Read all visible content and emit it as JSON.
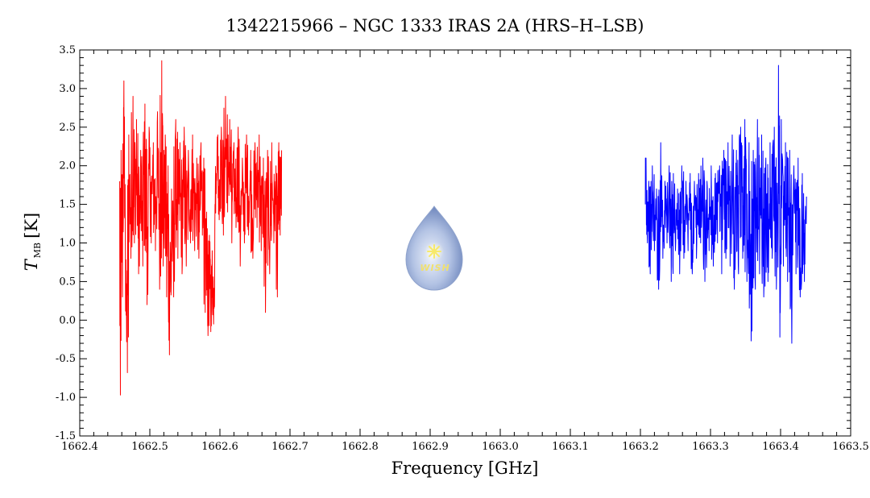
{
  "chart_data": {
    "type": "line",
    "title": "1342215966 – NGC 1333 IRAS 2A (HRS–H–LSB)",
    "xlabel": "Frequency [GHz]",
    "ylabel_main": "T",
    "ylabel_sub": "MB",
    "ylabel_unit": "[K]",
    "xlim": [
      1662.4,
      1663.5
    ],
    "ylim": [
      -1.5,
      3.5
    ],
    "x_ticks": [
      "1662.4",
      "1662.5",
      "1662.6",
      "1662.7",
      "1662.8",
      "1662.9",
      "1663.0",
      "1663.1",
      "1663.2",
      "1663.3",
      "1663.4",
      "1663.5"
    ],
    "y_ticks": [
      "-1.5",
      "-1.0",
      "-0.5",
      "0.0",
      "0.5",
      "1.0",
      "1.5",
      "2.0",
      "2.5",
      "3.0",
      "3.5"
    ],
    "grid": false,
    "logo_text": "WISH",
    "series": [
      {
        "color": "#ff0000",
        "x_range": [
          1662.457,
          1662.688
        ],
        "points": [
          [
            1662.457,
            1.8
          ],
          [
            1662.458,
            -0.97
          ],
          [
            1662.459,
            2.2
          ],
          [
            1662.461,
            0.3
          ],
          [
            1662.463,
            3.1
          ],
          [
            1662.465,
            0.9
          ],
          [
            1662.468,
            -0.68
          ],
          [
            1662.47,
            2.4
          ],
          [
            1662.473,
            0.8
          ],
          [
            1662.476,
            2.9
          ],
          [
            1662.478,
            1.0
          ],
          [
            1662.481,
            2.6
          ],
          [
            1662.484,
            0.6
          ],
          [
            1662.487,
            2.2
          ],
          [
            1662.49,
            0.7
          ],
          [
            1662.493,
            2.8
          ],
          [
            1662.496,
            0.2
          ],
          [
            1662.499,
            2.5
          ],
          [
            1662.502,
            1.0
          ],
          [
            1662.505,
            2.3
          ],
          [
            1662.508,
            0.9
          ],
          [
            1662.511,
            2.7
          ],
          [
            1662.514,
            0.4
          ],
          [
            1662.517,
            3.36
          ],
          [
            1662.519,
            0.7
          ],
          [
            1662.522,
            2.4
          ],
          [
            1662.524,
            0.3
          ],
          [
            1662.526,
            2.0
          ],
          [
            1662.528,
            -0.45
          ],
          [
            1662.531,
            1.7
          ],
          [
            1662.534,
            0.3
          ],
          [
            1662.537,
            2.6
          ],
          [
            1662.54,
            0.8
          ],
          [
            1662.543,
            2.3
          ],
          [
            1662.546,
            0.6
          ],
          [
            1662.549,
            2.5
          ],
          [
            1662.552,
            0.7
          ],
          [
            1662.555,
            2.2
          ],
          [
            1662.558,
            1.0
          ],
          [
            1662.561,
            2.4
          ],
          [
            1662.564,
            0.9
          ],
          [
            1662.567,
            2.1
          ],
          [
            1662.57,
            0.8
          ],
          [
            1662.573,
            2.3
          ],
          [
            1662.575,
            1.1
          ],
          [
            1662.577,
            2.1
          ],
          [
            1662.579,
            0.1
          ],
          [
            1662.581,
            1.4
          ],
          [
            1662.583,
            -0.2
          ],
          [
            1662.585,
            1.1
          ],
          [
            1662.587,
            -0.15
          ],
          [
            1662.589,
            0.9
          ],
          [
            1662.591,
            -0.05
          ],
          [
            1662.593,
            1.5
          ],
          [
            1662.595,
            1.9
          ],
          [
            1662.597,
            2.4
          ],
          [
            1662.599,
            1.3
          ],
          [
            1662.602,
            2.5
          ],
          [
            1662.605,
            1.1
          ],
          [
            1662.608,
            2.9
          ],
          [
            1662.611,
            1.4
          ],
          [
            1662.614,
            2.6
          ],
          [
            1662.617,
            1.0
          ],
          [
            1662.62,
            2.3
          ],
          [
            1662.623,
            1.2
          ],
          [
            1662.626,
            2.5
          ],
          [
            1662.629,
            0.7
          ],
          [
            1662.632,
            2.1
          ],
          [
            1662.635,
            1.0
          ],
          [
            1662.638,
            2.4
          ],
          [
            1662.641,
            1.1
          ],
          [
            1662.644,
            2.2
          ],
          [
            1662.647,
            0.8
          ],
          [
            1662.65,
            2.3
          ],
          [
            1662.653,
            1.2
          ],
          [
            1662.656,
            2.4
          ],
          [
            1662.659,
            0.9
          ],
          [
            1662.662,
            2.1
          ],
          [
            1662.665,
            0.1
          ],
          [
            1662.668,
            2.2
          ],
          [
            1662.671,
            0.6
          ],
          [
            1662.674,
            2.3
          ],
          [
            1662.677,
            1.0
          ],
          [
            1662.68,
            2.0
          ],
          [
            1662.682,
            0.3
          ],
          [
            1662.684,
            2.3
          ],
          [
            1662.686,
            1.1
          ],
          [
            1662.688,
            2.2
          ]
        ]
      },
      {
        "color": "#0000ff",
        "x_range": [
          1663.207,
          1663.437
        ],
        "points": [
          [
            1663.207,
            1.5
          ],
          [
            1663.208,
            2.1
          ],
          [
            1663.21,
            1.0
          ],
          [
            1663.212,
            1.8
          ],
          [
            1663.214,
            0.6
          ],
          [
            1663.217,
            2.0
          ],
          [
            1663.22,
            0.9
          ],
          [
            1663.223,
            1.7
          ],
          [
            1663.226,
            0.4
          ],
          [
            1663.229,
            2.3
          ],
          [
            1663.232,
            0.8
          ],
          [
            1663.235,
            1.8
          ],
          [
            1663.238,
            1.0
          ],
          [
            1663.241,
            2.0
          ],
          [
            1663.244,
            0.5
          ],
          [
            1663.247,
            1.9
          ],
          [
            1663.25,
            0.9
          ],
          [
            1663.253,
            1.7
          ],
          [
            1663.256,
            0.6
          ],
          [
            1663.259,
            2.0
          ],
          [
            1663.262,
            0.8
          ],
          [
            1663.265,
            1.8
          ],
          [
            1663.268,
            0.9
          ],
          [
            1663.271,
            1.9
          ],
          [
            1663.274,
            0.6
          ],
          [
            1663.277,
            1.8
          ],
          [
            1663.28,
            0.8
          ],
          [
            1663.283,
            1.9
          ],
          [
            1663.286,
            1.0
          ],
          [
            1663.289,
            2.1
          ],
          [
            1663.292,
            0.5
          ],
          [
            1663.295,
            1.8
          ],
          [
            1663.298,
            0.9
          ],
          [
            1663.301,
            2.0
          ],
          [
            1663.304,
            0.7
          ],
          [
            1663.307,
            1.9
          ],
          [
            1663.31,
            1.0
          ],
          [
            1663.313,
            2.0
          ],
          [
            1663.316,
            0.6
          ],
          [
            1663.319,
            2.2
          ],
          [
            1663.322,
            0.8
          ],
          [
            1663.325,
            2.3
          ],
          [
            1663.328,
            0.7
          ],
          [
            1663.331,
            2.4
          ],
          [
            1663.334,
            0.4
          ],
          [
            1663.337,
            2.2
          ],
          [
            1663.34,
            0.6
          ],
          [
            1663.343,
            2.5
          ],
          [
            1663.346,
            0.8
          ],
          [
            1663.349,
            2.6
          ],
          [
            1663.352,
            0.5
          ],
          [
            1663.355,
            2.3
          ],
          [
            1663.358,
            -0.27
          ],
          [
            1663.361,
            2.2
          ],
          [
            1663.364,
            0.4
          ],
          [
            1663.367,
            2.6
          ],
          [
            1663.37,
            0.6
          ],
          [
            1663.373,
            2.4
          ],
          [
            1663.376,
            0.3
          ],
          [
            1663.379,
            2.1
          ],
          [
            1663.382,
            0.5
          ],
          [
            1663.385,
            2.3
          ],
          [
            1663.388,
            0.8
          ],
          [
            1663.391,
            2.5
          ],
          [
            1663.394,
            0.4
          ],
          [
            1663.397,
            3.3
          ],
          [
            1663.399,
            -0.22
          ],
          [
            1663.401,
            2.6
          ],
          [
            1663.404,
            0.7
          ],
          [
            1663.407,
            2.3
          ],
          [
            1663.41,
            0.5
          ],
          [
            1663.413,
            2.2
          ],
          [
            1663.416,
            -0.3
          ],
          [
            1663.419,
            2.0
          ],
          [
            1663.422,
            0.6
          ],
          [
            1663.425,
            2.1
          ],
          [
            1663.428,
            0.3
          ],
          [
            1663.431,
            1.9
          ],
          [
            1663.434,
            0.5
          ],
          [
            1663.437,
            1.6
          ]
        ]
      }
    ]
  }
}
